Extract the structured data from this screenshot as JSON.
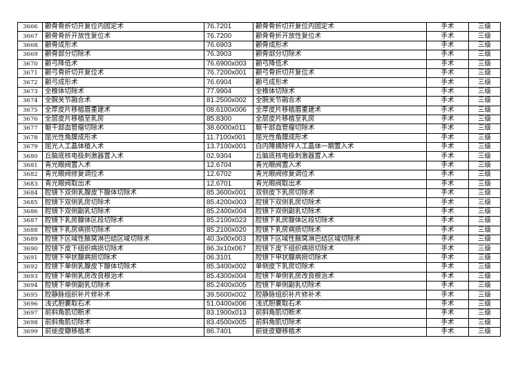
{
  "rows": [
    [
      "3666",
      "颧骨骨折切开复位内固定术",
      "76.7201",
      "颧骨骨折切开复位内固定术",
      "手术",
      "三级"
    ],
    [
      "3667",
      "颧骨骨折开放性复位术",
      "76.7200",
      "颧骨骨折开放性复位术",
      "手术",
      "三级"
    ],
    [
      "3668",
      "颧骨成形术",
      "76.6903",
      "颧骨成形术",
      "手术",
      "三级"
    ],
    [
      "3669",
      "颧骨部分切除术",
      "76.3903",
      "颧骨部分切除术",
      "手术",
      "三级"
    ],
    [
      "3670",
      "颧弓降低术",
      "76.6900x003",
      "颧弓降低术",
      "手术",
      "三级"
    ],
    [
      "3671",
      "颧弓骨折切开复位术",
      "76.7200x001",
      "颧弓骨折切开复位术",
      "手术",
      "三级"
    ],
    [
      "3672",
      "颧弓成形术",
      "76.6904",
      "颧弓成形术",
      "手术",
      "三级"
    ],
    [
      "3673",
      "全椎体切除术",
      "77.9904",
      "全椎体切除术",
      "手术",
      "三级"
    ],
    [
      "3674",
      "全腕关节融合术",
      "81.2500x002",
      "全腕关节融合术",
      "手术",
      "三级"
    ],
    [
      "3675",
      "全厚皮片移植眉重建术",
      "08.6100x006",
      "全厚皮片移植眉重建术",
      "手术",
      "三级"
    ],
    [
      "3676",
      "全层皮片移植至乳房",
      "85.8300",
      "全层皮片移植至乳房",
      "手术",
      "三级"
    ],
    [
      "3677",
      "躯干部血管瘤切除术",
      "38.6000x011",
      "躯干部血管瘤切除术",
      "手术",
      "三级"
    ],
    [
      "3678",
      "屈光性角膜成形术",
      "11.7100x001",
      "屈光性角膜成形术",
      "手术",
      "三级"
    ],
    [
      "3679",
      "屈光人工晶体植入术",
      "13.7100x001",
      "白内障摘除伴人工晶体一期置入术",
      "手术",
      "三级"
    ],
    [
      "3680",
      "丘脑底核电极刺激器置入术",
      "02.9304",
      "丘脑底核电极刺激器置入术",
      "手术",
      "三级"
    ],
    [
      "3681",
      "青光眼阀置入术",
      "12.6704",
      "青光眼阀置入术",
      "手术",
      "三级"
    ],
    [
      "3682",
      "青光眼阀修复调位术",
      "12.6702",
      "青光眼阀修复调位术",
      "手术",
      "三级"
    ],
    [
      "3683",
      "青光眼阀取出术",
      "12.6701",
      "青光眼阀取出术",
      "手术",
      "三级"
    ],
    [
      "3684",
      "腔镜下双侧乳腺皮下腺体切除术",
      "85.3600x001",
      "双侧皮下乳房切除术",
      "手术",
      "三级"
    ],
    [
      "3685",
      "腔镜下双侧乳房切除术",
      "85.4200x003",
      "腔镜下双侧乳房切除术",
      "手术",
      "三级"
    ],
    [
      "3686",
      "腔镜下双侧副乳切除术",
      "85.2400x004",
      "腔镜下双侧副乳切除术",
      "手术",
      "三级"
    ],
    [
      "3687",
      "腔镜下乳房腺体区段切除术",
      "85.2100x023",
      "腔镜下乳房腺体区段切除术",
      "手术",
      "三级"
    ],
    [
      "3688",
      "腔镜下乳房病损切除术",
      "85.2100x020",
      "腔镜下乳房病损切除术",
      "手术",
      "三级"
    ],
    [
      "3689",
      "腔镜下区域性腋窝淋巴结区域切除术",
      "40.3x00x003",
      "腔镜下区域性腋窝淋巴结区域切除术",
      "手术",
      "三级"
    ],
    [
      "3690",
      "腔镜下皮下组织病损切除术",
      "86.3x10x067",
      "腔镜下皮下组织病损切除术",
      "手术",
      "三级"
    ],
    [
      "3691",
      "腔镜下甲状腺病损切除术",
      "06.3101",
      "腔镜下甲状腺病损切除术",
      "手术",
      "三级"
    ],
    [
      "3692",
      "腔镜下单侧乳腺皮下腺体切除术",
      "85.3400x002",
      "单侧皮下乳房切除术",
      "手术",
      "三级"
    ],
    [
      "3693",
      "腔镜下单侧乳房改良根治术",
      "85.4300x004",
      "腔镜下单侧乳房改良根治术",
      "手术",
      "三级"
    ],
    [
      "3694",
      "腔镜下单侧副乳切除术",
      "85.2400x005",
      "腔镜下单侧副乳切除术",
      "手术",
      "三级"
    ],
    [
      "3695",
      "腔静脉组织补片修补术",
      "39.5600x002",
      "腔静脉组织补片修补术",
      "手术",
      "三级"
    ],
    [
      "3696",
      "浅式胆囊取石术",
      "51.0400x006",
      "浅式胆囊取石术",
      "手术",
      "三级"
    ],
    [
      "3697",
      "前斜角肌切断术",
      "83.1900x013",
      "前斜角肌切断术",
      "手术",
      "三级"
    ],
    [
      "3698",
      "前斜角肌切除术",
      "83.4500x005",
      "前斜角肌切除术",
      "手术",
      "三级"
    ],
    [
      "3699",
      "前徙皮瓣移植术",
      "86.7401",
      "前徙皮瓣移植术",
      "手术",
      "三级"
    ]
  ]
}
